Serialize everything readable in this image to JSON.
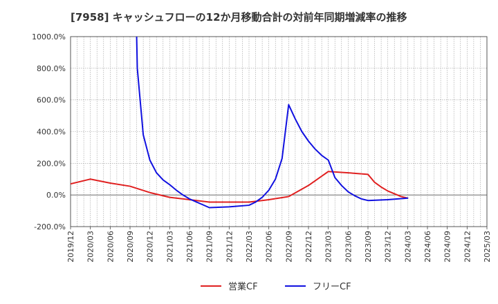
{
  "chart_data": {
    "type": "line",
    "title": "[7958]  キャッシュフローの12か月移動合計の対前年同期増減率の推移",
    "xlabel": "",
    "ylabel": "",
    "ylim": [
      -200,
      1000
    ],
    "yticks": [
      1000,
      800,
      600,
      400,
      200,
      0,
      -200
    ],
    "ytick_labels": [
      "1000.0%",
      "800.0%",
      "600.0%",
      "400.0%",
      "200.0%",
      "0.0%",
      "-200.0%"
    ],
    "x_range": [
      "2019/12",
      "2025/03"
    ],
    "xtick_labels": [
      "2019/12",
      "2020/03",
      "2020/06",
      "2020/09",
      "2020/12",
      "2021/03",
      "2021/06",
      "2021/09",
      "2021/12",
      "2022/03",
      "2022/06",
      "2022/09",
      "2022/12",
      "2023/03",
      "2023/06",
      "2023/09",
      "2023/12",
      "2024/03",
      "2024/06",
      "2024/09",
      "2024/12",
      "2025/03"
    ],
    "grid": true,
    "legend_position": "bottom-center",
    "series": [
      {
        "name": "営業CF",
        "color": "#e02020",
        "points": [
          {
            "x": "2019/12",
            "y": 70
          },
          {
            "x": "2020/03",
            "y": 100
          },
          {
            "x": "2020/06",
            "y": 75
          },
          {
            "x": "2020/09",
            "y": 55
          },
          {
            "x": "2020/12",
            "y": 15
          },
          {
            "x": "2021/03",
            "y": -15
          },
          {
            "x": "2021/06",
            "y": -30
          },
          {
            "x": "2021/09",
            "y": -45
          },
          {
            "x": "2021/12",
            "y": -45
          },
          {
            "x": "2022/03",
            "y": -45
          },
          {
            "x": "2022/06",
            "y": -30
          },
          {
            "x": "2022/09",
            "y": -10
          },
          {
            "x": "2022/12",
            "y": 60
          },
          {
            "x": "2023/03",
            "y": 148
          },
          {
            "x": "2023/06",
            "y": 140
          },
          {
            "x": "2023/09",
            "y": 130
          },
          {
            "x": "2023/10",
            "y": 80
          },
          {
            "x": "2023/11",
            "y": 50
          },
          {
            "x": "2023/12",
            "y": 25
          },
          {
            "x": "2024/02",
            "y": -10
          },
          {
            "x": "2024/03",
            "y": -20
          }
        ]
      },
      {
        "name": "フリーCF",
        "color": "#1010e0",
        "points": [
          {
            "x": "2020/10",
            "y": 1000
          },
          {
            "x": "2020/10.1",
            "y": 800
          },
          {
            "x": "2020/11",
            "y": 380
          },
          {
            "x": "2020/12",
            "y": 220
          },
          {
            "x": "2021/01",
            "y": 140
          },
          {
            "x": "2021/02",
            "y": 95
          },
          {
            "x": "2021/03",
            "y": 65
          },
          {
            "x": "2021/04",
            "y": 30
          },
          {
            "x": "2021/05",
            "y": 0
          },
          {
            "x": "2021/06",
            "y": -25
          },
          {
            "x": "2021/09",
            "y": -80
          },
          {
            "x": "2021/12",
            "y": -75
          },
          {
            "x": "2022/03",
            "y": -65
          },
          {
            "x": "2022/04",
            "y": -45
          },
          {
            "x": "2022/05",
            "y": -15
          },
          {
            "x": "2022/06",
            "y": 30
          },
          {
            "x": "2022/07",
            "y": 100
          },
          {
            "x": "2022/08",
            "y": 230
          },
          {
            "x": "2022/09",
            "y": 570
          },
          {
            "x": "2022/10",
            "y": 480
          },
          {
            "x": "2022/11",
            "y": 400
          },
          {
            "x": "2022/12",
            "y": 340
          },
          {
            "x": "2023/01",
            "y": 290
          },
          {
            "x": "2023/02",
            "y": 250
          },
          {
            "x": "2023/03",
            "y": 220
          },
          {
            "x": "2023/04",
            "y": 110
          },
          {
            "x": "2023/05",
            "y": 60
          },
          {
            "x": "2023/06",
            "y": 20
          },
          {
            "x": "2023/07",
            "y": -5
          },
          {
            "x": "2023/08",
            "y": -25
          },
          {
            "x": "2023/09",
            "y": -35
          },
          {
            "x": "2023/12",
            "y": -30
          },
          {
            "x": "2024/03",
            "y": -20
          }
        ]
      }
    ]
  }
}
